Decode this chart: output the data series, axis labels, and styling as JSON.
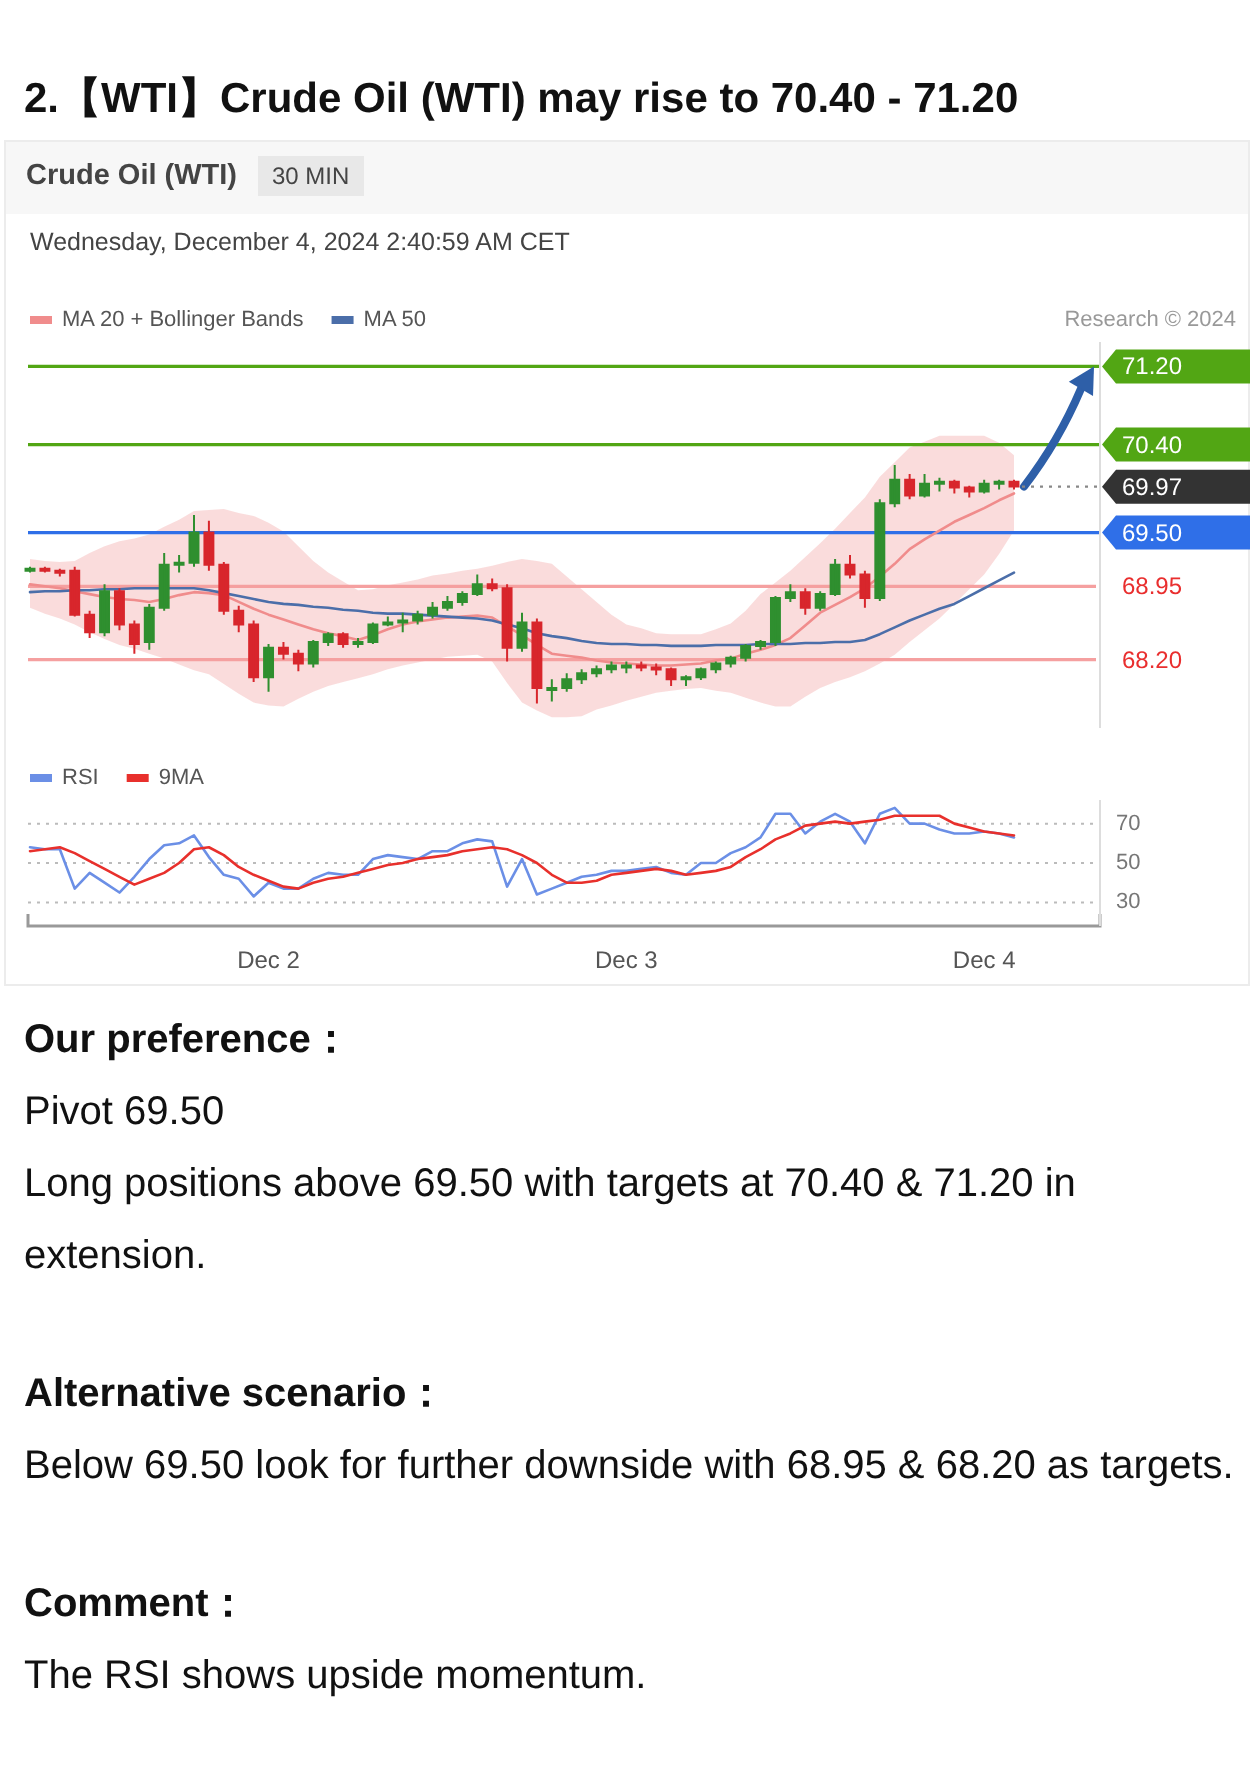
{
  "chart_data": [
    {
      "type": "candlestick",
      "title": "2.【WTI】Crude Oil (WTI) may rise to 70.40 - 71.20",
      "subtitle": "Crude Oil (WTI)",
      "annotations": [
        "30 MIN",
        "Wednesday, December 4, 2024 2:40:59 AM CET",
        "Research © 2024"
      ],
      "categories": [
        null,
        null,
        null,
        null,
        null,
        null,
        null,
        null,
        null,
        null,
        null,
        null,
        null,
        null,
        null,
        null,
        null,
        null,
        null,
        null,
        null,
        null,
        null,
        null,
        null,
        null,
        null,
        null,
        null,
        null,
        null,
        null,
        null,
        null,
        null,
        null,
        null,
        null,
        null,
        null,
        null,
        null,
        null,
        null,
        null,
        null,
        null,
        null,
        null,
        null,
        null,
        null,
        null,
        null,
        null,
        null,
        null,
        null,
        null,
        null,
        null,
        null,
        null,
        null,
        null,
        null,
        null
      ],
      "ohlc": [
        [
          69.11,
          69.15,
          69.09,
          69.13
        ],
        [
          69.13,
          69.15,
          69.09,
          69.11
        ],
        [
          69.11,
          69.13,
          69.05,
          69.09
        ],
        [
          69.11,
          69.15,
          68.64,
          68.66
        ],
        [
          68.66,
          68.7,
          68.42,
          68.48
        ],
        [
          68.48,
          68.97,
          68.44,
          68.9
        ],
        [
          68.9,
          68.93,
          68.5,
          68.56
        ],
        [
          68.56,
          68.6,
          68.26,
          68.36
        ],
        [
          68.38,
          68.77,
          68.3,
          68.73
        ],
        [
          68.73,
          69.29,
          68.7,
          69.17
        ],
        [
          69.17,
          69.27,
          69.09,
          69.19
        ],
        [
          69.19,
          69.68,
          69.15,
          69.5
        ],
        [
          69.5,
          69.62,
          69.11,
          69.17
        ],
        [
          69.17,
          69.2,
          68.66,
          68.7
        ],
        [
          68.7,
          68.75,
          68.48,
          68.56
        ],
        [
          68.56,
          68.6,
          67.97,
          68.02
        ],
        [
          68.02,
          68.36,
          67.87,
          68.32
        ],
        [
          68.32,
          68.38,
          68.2,
          68.26
        ],
        [
          68.26,
          68.3,
          68.08,
          68.16
        ],
        [
          68.16,
          68.4,
          68.12,
          68.38
        ],
        [
          68.38,
          68.48,
          68.34,
          68.46
        ],
        [
          68.46,
          68.48,
          68.32,
          68.36
        ],
        [
          68.36,
          68.42,
          68.32,
          68.38
        ],
        [
          68.38,
          68.58,
          68.36,
          68.56
        ],
        [
          68.56,
          68.64,
          68.54,
          68.58
        ],
        [
          68.58,
          68.68,
          68.48,
          68.6
        ],
        [
          68.6,
          68.7,
          68.56,
          68.66
        ],
        [
          68.66,
          68.79,
          68.62,
          68.73
        ],
        [
          68.73,
          68.85,
          68.7,
          68.79
        ],
        [
          68.79,
          68.9,
          68.75,
          68.87
        ],
        [
          68.87,
          69.07,
          68.85,
          68.97
        ],
        [
          68.97,
          69.03,
          68.9,
          68.93
        ],
        [
          68.93,
          68.97,
          68.18,
          68.32
        ],
        [
          68.32,
          68.68,
          68.28,
          68.58
        ],
        [
          68.58,
          68.62,
          67.75,
          67.91
        ],
        [
          67.91,
          68.0,
          67.77,
          67.91
        ],
        [
          67.91,
          68.06,
          67.87,
          68.0
        ],
        [
          68.0,
          68.1,
          67.95,
          68.06
        ],
        [
          68.06,
          68.14,
          68.02,
          68.1
        ],
        [
          68.1,
          68.18,
          68.06,
          68.14
        ],
        [
          68.14,
          68.18,
          68.06,
          68.14
        ],
        [
          68.14,
          68.18,
          68.08,
          68.12
        ],
        [
          68.12,
          68.16,
          68.04,
          68.1
        ],
        [
          68.1,
          68.12,
          67.93,
          68.0
        ],
        [
          68.0,
          68.04,
          67.93,
          68.02
        ],
        [
          68.02,
          68.12,
          67.99,
          68.1
        ],
        [
          68.1,
          68.18,
          68.06,
          68.16
        ],
        [
          68.16,
          68.24,
          68.12,
          68.22
        ],
        [
          68.22,
          68.36,
          68.18,
          68.34
        ],
        [
          68.34,
          68.4,
          68.3,
          68.38
        ],
        [
          68.38,
          68.85,
          68.34,
          68.83
        ],
        [
          68.83,
          68.97,
          68.79,
          68.89
        ],
        [
          68.89,
          68.93,
          68.66,
          68.73
        ],
        [
          68.73,
          68.9,
          68.7,
          68.87
        ],
        [
          68.87,
          69.23,
          68.85,
          69.17
        ],
        [
          69.17,
          69.27,
          69.03,
          69.07
        ],
        [
          69.07,
          69.11,
          68.73,
          68.83
        ],
        [
          68.83,
          69.84,
          68.8,
          69.8
        ],
        [
          69.8,
          70.19,
          69.76,
          70.04
        ],
        [
          70.04,
          70.1,
          69.84,
          69.88
        ],
        [
          69.88,
          70.1,
          69.86,
          70.0
        ],
        [
          70.0,
          70.06,
          69.92,
          70.02
        ],
        [
          70.02,
          70.04,
          69.9,
          69.96
        ],
        [
          69.96,
          69.98,
          69.86,
          69.92
        ],
        [
          69.92,
          70.04,
          69.9,
          70.0
        ],
        [
          70.0,
          70.04,
          69.94,
          70.02
        ],
        [
          70.02,
          70.04,
          69.94,
          69.97
        ]
      ],
      "series": [
        {
          "name": "MA 20 + Bollinger Bands",
          "type": "line",
          "color": "#f08c8c",
          "values": [
            68.97,
            68.95,
            68.93,
            68.9,
            68.87,
            68.84,
            68.82,
            68.81,
            68.79,
            68.82,
            68.86,
            68.89,
            68.88,
            68.86,
            68.79,
            68.72,
            68.66,
            68.61,
            68.56,
            68.51,
            68.47,
            68.44,
            68.4,
            68.45,
            68.51,
            68.56,
            68.59,
            68.61,
            68.63,
            68.64,
            68.65,
            68.63,
            68.54,
            68.45,
            68.35,
            68.26,
            68.24,
            68.22,
            68.19,
            68.17,
            68.16,
            68.15,
            68.14,
            68.14,
            68.15,
            68.16,
            68.19,
            68.21,
            68.26,
            68.3,
            68.35,
            68.42,
            68.55,
            68.68,
            68.76,
            68.84,
            68.93,
            69.05,
            69.18,
            69.33,
            69.43,
            69.52,
            69.61,
            69.68,
            69.75,
            69.83,
            69.9
          ],
          "lower": [
            68.73,
            68.67,
            68.62,
            68.56,
            68.48,
            68.41,
            68.35,
            68.31,
            68.26,
            68.21,
            68.15,
            68.09,
            68.05,
            67.95,
            67.85,
            67.76,
            67.73,
            67.72,
            67.8,
            67.87,
            67.93,
            67.97,
            68.01,
            68.05,
            68.1,
            68.14,
            68.17,
            68.2,
            68.23,
            68.24,
            68.25,
            68.18,
            67.96,
            67.76,
            67.68,
            67.61,
            67.61,
            67.62,
            67.69,
            67.73,
            67.78,
            67.82,
            67.86,
            67.88,
            67.9,
            67.91,
            67.88,
            67.86,
            67.81,
            67.76,
            67.72,
            67.72,
            67.82,
            67.91,
            67.97,
            68.02,
            68.08,
            68.16,
            68.25,
            68.38,
            68.5,
            68.62,
            68.77,
            68.92,
            69.07,
            69.28,
            69.52
          ],
          "upper": [
            69.23,
            69.21,
            69.2,
            69.21,
            69.29,
            69.36,
            69.41,
            69.44,
            69.48,
            69.56,
            69.63,
            69.72,
            69.73,
            69.74,
            69.7,
            69.67,
            69.6,
            69.51,
            69.36,
            69.21,
            69.09,
            69.0,
            68.91,
            68.92,
            68.96,
            68.99,
            69.02,
            69.06,
            69.08,
            69.11,
            69.13,
            69.16,
            69.2,
            69.23,
            69.21,
            69.18,
            69.05,
            68.92,
            68.79,
            68.66,
            68.56,
            68.52,
            68.47,
            68.46,
            68.46,
            68.46,
            68.51,
            68.57,
            68.7,
            68.87,
            68.99,
            69.11,
            69.25,
            69.39,
            69.54,
            69.7,
            69.86,
            70.07,
            70.22,
            70.37,
            70.43,
            70.49,
            70.49,
            70.49,
            70.49,
            70.42,
            70.29
          ]
        },
        {
          "name": "MA 50",
          "type": "line",
          "color": "#4b6ea9",
          "values": [
            68.89,
            68.9,
            68.9,
            68.91,
            68.91,
            68.92,
            68.92,
            68.93,
            68.93,
            68.93,
            68.93,
            68.93,
            68.91,
            68.88,
            68.85,
            68.82,
            68.79,
            68.77,
            68.76,
            68.74,
            68.73,
            68.71,
            68.7,
            68.68,
            68.67,
            68.67,
            68.66,
            68.65,
            68.64,
            68.63,
            68.62,
            68.6,
            68.56,
            68.52,
            68.47,
            68.44,
            68.42,
            68.39,
            68.37,
            68.36,
            68.36,
            68.35,
            68.35,
            68.34,
            68.34,
            68.34,
            68.35,
            68.35,
            68.35,
            68.36,
            68.36,
            68.36,
            68.37,
            68.37,
            68.38,
            68.38,
            68.4,
            68.46,
            68.53,
            68.6,
            68.66,
            68.72,
            68.77,
            68.85,
            68.93,
            69.01,
            69.09
          ]
        }
      ],
      "ref_lines": [
        {
          "axis": "y",
          "value": 71.2,
          "color": "#52a614"
        },
        {
          "axis": "y",
          "value": 70.4,
          "color": "#52a614"
        },
        {
          "axis": "y",
          "value": 69.5,
          "color": "#2f6fe8"
        },
        {
          "axis": "y",
          "value": 68.95,
          "color": "#f5a0a0"
        },
        {
          "axis": "y",
          "value": 68.2,
          "color": "#f5a0a0"
        }
      ],
      "ylim": [
        67.5,
        71.45
      ],
      "yticks": [
        {
          "value": 68.2,
          "label": "68.20"
        },
        {
          "value": 68.95,
          "label": "68.95"
        },
        {
          "value": 69.5,
          "label": "69.50"
        },
        {
          "value": 69.97,
          "label": "69.97"
        },
        {
          "value": 70.4,
          "label": "70.40"
        },
        {
          "value": 71.2,
          "label": "71.20"
        }
      ],
      "legend": "top left",
      "tick_labels": "y"
    },
    {
      "type": "line",
      "categories": [
        null,
        null,
        null,
        null,
        null,
        null,
        null,
        null,
        null,
        null,
        null,
        null,
        null,
        null,
        null,
        null,
        "Dec 2",
        null,
        null,
        null,
        null,
        null,
        null,
        null,
        null,
        null,
        null,
        null,
        null,
        null,
        null,
        null,
        null,
        null,
        null,
        null,
        null,
        null,
        null,
        null,
        "Dec 3",
        null,
        null,
        null,
        null,
        null,
        null,
        null,
        null,
        null,
        null,
        null,
        null,
        null,
        null,
        null,
        null,
        null,
        null,
        null,
        null,
        null,
        null,
        null,
        "Dec 4",
        null,
        null
      ],
      "series": [
        {
          "name": "RSI",
          "color": "#6b8fe6",
          "values": [
            58,
            57,
            57,
            37,
            45,
            40,
            35,
            43,
            52,
            59,
            60,
            64,
            53,
            44,
            42,
            33,
            40,
            37,
            37,
            42,
            45,
            44,
            44,
            52,
            54,
            53,
            52,
            56,
            56,
            60,
            62,
            61,
            38,
            52,
            34,
            37,
            40,
            43,
            44,
            46,
            46,
            47,
            48,
            45,
            44,
            50,
            50,
            55,
            58,
            63,
            75,
            75,
            65,
            71,
            75,
            71,
            60,
            75,
            78,
            70,
            70,
            67,
            65,
            65,
            66,
            65,
            63
          ]
        },
        {
          "name": "9MA",
          "color": "#e8302c",
          "values": [
            56,
            57,
            58,
            55,
            51,
            47,
            43,
            39,
            42,
            45,
            50,
            57,
            58,
            54,
            48,
            44,
            41,
            38,
            37,
            40,
            42,
            43,
            45,
            47,
            49,
            50,
            52,
            53,
            54,
            56,
            57,
            58,
            57,
            54,
            50,
            44,
            40,
            40,
            41,
            44,
            45,
            46,
            47,
            46,
            44,
            45,
            46,
            48,
            53,
            57,
            62,
            65,
            69,
            70,
            71,
            70,
            71,
            72,
            74,
            74,
            74,
            74,
            70,
            68,
            66,
            65,
            64
          ]
        }
      ],
      "ylim": [
        18,
        82
      ],
      "yticks": [
        30,
        50,
        70
      ],
      "grid": "y",
      "legend": "top left",
      "annotations": [
        "Our preference：",
        "Pivot 69.50",
        "Long positions above 69.50 with targets at 70.40 & 71.20 in extension.",
        "Alternative scenario：",
        "Below 69.50 look for further downside with 68.95 & 68.20 as targets.",
        "Comment：",
        "The RSI shows upside momentum."
      ]
    }
  ]
}
